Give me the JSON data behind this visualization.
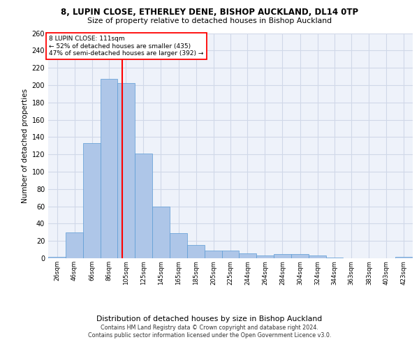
{
  "title1": "8, LUPIN CLOSE, ETHERLEY DENE, BISHOP AUCKLAND, DL14 0TP",
  "title2": "Size of property relative to detached houses in Bishop Auckland",
  "xlabel": "Distribution of detached houses by size in Bishop Auckland",
  "ylabel": "Number of detached properties",
  "footnote1": "Contains HM Land Registry data © Crown copyright and database right 2024.",
  "footnote2": "Contains public sector information licensed under the Open Government Licence v3.0.",
  "annotation_line1": "8 LUPIN CLOSE: 111sqm",
  "annotation_line2": "← 52% of detached houses are smaller (435)",
  "annotation_line3": "47% of semi-detached houses are larger (392) →",
  "property_size": 111,
  "bar_color": "#aec6e8",
  "bar_edge_color": "#5b9bd5",
  "redline_color": "red",
  "grid_color": "#d0d8e8",
  "bg_color": "#eef2fa",
  "categories": [
    "26sqm",
    "46sqm",
    "66sqm",
    "86sqm",
    "105sqm",
    "125sqm",
    "145sqm",
    "165sqm",
    "185sqm",
    "205sqm",
    "225sqm",
    "244sqm",
    "264sqm",
    "284sqm",
    "304sqm",
    "324sqm",
    "344sqm",
    "363sqm",
    "383sqm",
    "403sqm",
    "423sqm"
  ],
  "values": [
    2,
    30,
    133,
    207,
    202,
    121,
    60,
    29,
    15,
    9,
    9,
    6,
    3,
    5,
    5,
    3,
    1,
    0,
    0,
    0,
    2
  ],
  "bin_edges": [
    26,
    46,
    66,
    86,
    105,
    125,
    145,
    165,
    185,
    205,
    225,
    244,
    264,
    284,
    304,
    324,
    344,
    363,
    383,
    403,
    423,
    443
  ],
  "ylim": [
    0,
    260
  ],
  "yticks": [
    0,
    20,
    40,
    60,
    80,
    100,
    120,
    140,
    160,
    180,
    200,
    220,
    240,
    260
  ]
}
